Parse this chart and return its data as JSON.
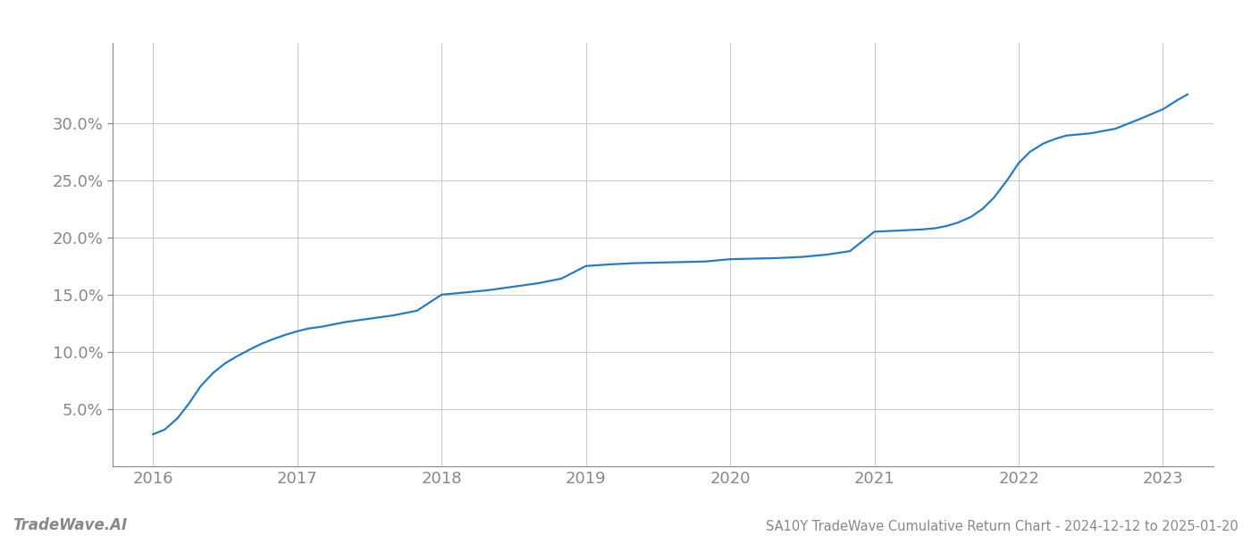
{
  "title": "SA10Y TradeWave Cumulative Return Chart - 2024-12-12 to 2025-01-20",
  "watermark": "TradeWave.AI",
  "line_color": "#2b7bba",
  "background_color": "#ffffff",
  "grid_color": "#c8c8c8",
  "x_years": [
    2016,
    2017,
    2018,
    2019,
    2020,
    2021,
    2022,
    2023
  ],
  "data_points": [
    [
      2016.0,
      2.8
    ],
    [
      2016.08,
      3.2
    ],
    [
      2016.17,
      4.2
    ],
    [
      2016.25,
      5.5
    ],
    [
      2016.33,
      7.0
    ],
    [
      2016.42,
      8.2
    ],
    [
      2016.5,
      9.0
    ],
    [
      2016.58,
      9.6
    ],
    [
      2016.67,
      10.2
    ],
    [
      2016.75,
      10.7
    ],
    [
      2016.83,
      11.1
    ],
    [
      2016.92,
      11.5
    ],
    [
      2017.0,
      11.8
    ],
    [
      2017.08,
      12.05
    ],
    [
      2017.17,
      12.2
    ],
    [
      2017.25,
      12.4
    ],
    [
      2017.33,
      12.6
    ],
    [
      2017.5,
      12.9
    ],
    [
      2017.67,
      13.2
    ],
    [
      2017.83,
      13.6
    ],
    [
      2018.0,
      15.0
    ],
    [
      2018.17,
      15.2
    ],
    [
      2018.33,
      15.4
    ],
    [
      2018.5,
      15.7
    ],
    [
      2018.67,
      16.0
    ],
    [
      2018.83,
      16.4
    ],
    [
      2019.0,
      17.5
    ],
    [
      2019.17,
      17.65
    ],
    [
      2019.33,
      17.75
    ],
    [
      2019.5,
      17.8
    ],
    [
      2019.67,
      17.85
    ],
    [
      2019.83,
      17.9
    ],
    [
      2020.0,
      18.1
    ],
    [
      2020.17,
      18.15
    ],
    [
      2020.33,
      18.2
    ],
    [
      2020.5,
      18.3
    ],
    [
      2020.67,
      18.5
    ],
    [
      2020.83,
      18.8
    ],
    [
      2021.0,
      20.5
    ],
    [
      2021.08,
      20.55
    ],
    [
      2021.17,
      20.6
    ],
    [
      2021.25,
      20.65
    ],
    [
      2021.33,
      20.7
    ],
    [
      2021.42,
      20.8
    ],
    [
      2021.5,
      21.0
    ],
    [
      2021.58,
      21.3
    ],
    [
      2021.67,
      21.8
    ],
    [
      2021.75,
      22.5
    ],
    [
      2021.83,
      23.5
    ],
    [
      2021.92,
      25.0
    ],
    [
      2022.0,
      26.5
    ],
    [
      2022.08,
      27.5
    ],
    [
      2022.17,
      28.2
    ],
    [
      2022.25,
      28.6
    ],
    [
      2022.33,
      28.9
    ],
    [
      2022.5,
      29.1
    ],
    [
      2022.67,
      29.5
    ],
    [
      2022.83,
      30.3
    ],
    [
      2023.0,
      31.2
    ],
    [
      2023.1,
      32.0
    ],
    [
      2023.17,
      32.5
    ]
  ],
  "xlim": [
    2015.72,
    2023.35
  ],
  "ylim": [
    0,
    37
  ],
  "yticks": [
    5.0,
    10.0,
    15.0,
    20.0,
    25.0,
    30.0
  ],
  "title_fontsize": 10.5,
  "watermark_fontsize": 12,
  "tick_fontsize": 13,
  "line_width": 1.6
}
